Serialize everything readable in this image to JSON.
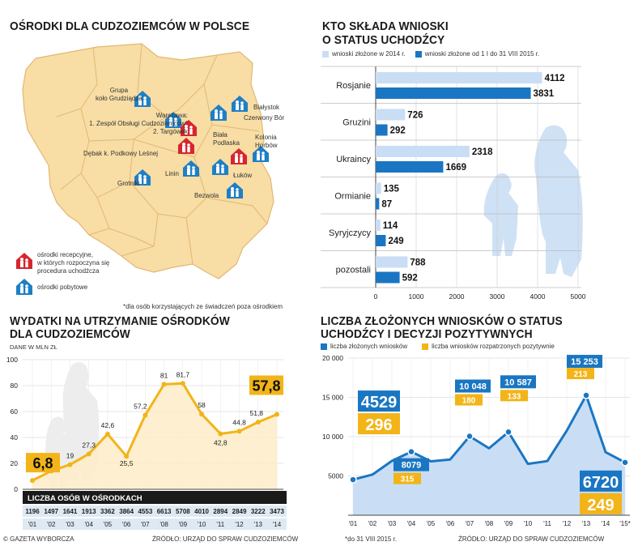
{
  "map": {
    "title": "OŚRODKI DLA CUDZOZIEMCÓW W POLSCE",
    "labels": {
      "grupa": "Grupa\nkoło Grudziądza",
      "warszawa": "Warszawa:\n1. Zespół Obsługi Cudzoziemców*\n2. Targówek",
      "debak": "Dębak k. Podkowy Leśnej",
      "bialystok": "Białystok",
      "czerwony": "Czerwony Bór",
      "biala": "Biała\nPodlaska",
      "kolonia": "Kolonia\nHorbów",
      "linin": "Linin",
      "lukow": "Łuków",
      "grotniki": "Grotniki",
      "bezwola": "Bezwola"
    },
    "legend_reception": "ośrodki recepcyjne,\nw których rozpoczyna się\nprocedura uchodźcza",
    "legend_stay": "ośrodki pobytowe",
    "footnote": "*dla osób korzystających ze świadczeń poza ośrodkiem",
    "colors": {
      "land": "#f8dda5",
      "border": "#e2b872",
      "reception": "#d7262e",
      "stay": "#1f7fc4"
    }
  },
  "applicants": {
    "title_line1": "KTO SKŁADA WNIOSKI",
    "title_line2": "O STATUS UCHODŹCY",
    "legend": [
      "wnioski złożone w 2014 r.",
      "wnioski złożone od 1 I do 31 VIII 2015 r."
    ]
  },
  "expenses": {
    "title_line1": "WYDATKI NA UTRZYMANIE OŚRODKÓW",
    "title_line2": "DLA CUDZOZIEMCÓW",
    "unit": "DANE W MLN ZŁ",
    "band_title": "LICZBA OSÓB W OŚRODKACH",
    "people": [
      "1196",
      "1497",
      "1641",
      "1913",
      "3362",
      "3864",
      "4553",
      "6613",
      "5708",
      "4010",
      "2894",
      "2849",
      "3222",
      "3473"
    ]
  },
  "decisions": {
    "title_line1": "LICZBA ZŁOŻONYCH WNIOSKÓW O STATUS",
    "title_line2": "UCHODŹCY I DECYZJI POZYTYWNYCH",
    "legend": [
      "liczba złożonych wniosków",
      "liczba wniosków rozpatrzonych pozytywnie"
    ],
    "footnote": "*do 31 VIII 2015 r."
  },
  "footer": {
    "credit": "© GAZETA WYBORCZA",
    "source_left": "ŹRÓDŁO: URZĄD DO SPRAW CUDZOZIEMCÓW",
    "source_right": "ŹRÓDŁO: URZĄD DO SPRAW CUDZOZIEMCÓW"
  },
  "chart_data": [
    {
      "type": "bar",
      "orientation": "horizontal",
      "title": "KTO SKŁADA WNIOSKI O STATUS UCHODŹCY",
      "categories": [
        "Rosjanie",
        "Gruzini",
        "Ukraincy",
        "Ormianie",
        "Syryjczycy",
        "pozostali"
      ],
      "series": [
        {
          "name": "wnioski złożone w 2014 r.",
          "values": [
            4112,
            726,
            2318,
            135,
            114,
            788
          ],
          "color": "#c9def5"
        },
        {
          "name": "wnioski złożone od 1 I do 31 VIII 2015 r.",
          "values": [
            3831,
            292,
            1669,
            87,
            249,
            592
          ],
          "color": "#1a76c2"
        }
      ],
      "xlim": [
        0,
        5000
      ],
      "xticks": [
        0,
        1000,
        2000,
        3000,
        4000,
        5000
      ]
    },
    {
      "type": "line",
      "title": "WYDATKI NA UTRZYMANIE OŚRODKÓW DLA CUDZOZIEMCÓW",
      "ylabel": "DANE W MLN ZŁ",
      "categories": [
        "'01",
        "'02",
        "'03",
        "'04",
        "'05",
        "'06",
        "'07",
        "'08",
        "'09",
        "'10",
        "'11",
        "'12",
        "'13",
        "'14"
      ],
      "series": [
        {
          "values": [
            6.8,
            14.1,
            19,
            27.3,
            42.6,
            25.5,
            57.2,
            81,
            81.7,
            58,
            42.8,
            44.8,
            51.8,
            57.8
          ],
          "color": "#f2b418"
        }
      ],
      "value_labels": [
        "6,8",
        "14,1",
        "19",
        "27,3",
        "42,6",
        "25,5",
        "57,2",
        "81",
        "81,7",
        "58",
        "42,8",
        "44,8",
        "51,8",
        "57,8"
      ],
      "ylim": [
        0,
        100
      ],
      "yticks": [
        0,
        20,
        40,
        60,
        80,
        100
      ],
      "grid": true
    },
    {
      "type": "area",
      "title": "LICZBA ZŁOŻONYCH WNIOSKÓW O STATUS UCHODŹCY I DECYZJI POZYTYWNYCH",
      "categories": [
        "'01",
        "'02",
        "'03",
        "'04",
        "'05",
        "'06",
        "'07",
        "'08",
        "'09",
        "'10",
        "'11",
        "'12",
        "'13",
        "'14",
        "'15*"
      ],
      "series": [
        {
          "name": "liczba złożonych wniosków",
          "values": [
            4529,
            5170,
            6909,
            8079,
            6860,
            7093,
            10048,
            8517,
            10587,
            6534,
            6887,
            10753,
            15253,
            8020,
            6720
          ],
          "color": "#1a76c2"
        }
      ],
      "annotations": [
        {
          "category": "'01",
          "submitted": "4529",
          "positive": "296"
        },
        {
          "category": "'04",
          "submitted": "8079",
          "positive": "315"
        },
        {
          "category": "'07",
          "submitted": "10 048",
          "positive": "180"
        },
        {
          "category": "'09",
          "submitted": "10 587",
          "positive": "133"
        },
        {
          "category": "'13",
          "submitted": "15 253",
          "positive": "213"
        },
        {
          "category": "'15*",
          "submitted": "6720",
          "positive": "249"
        }
      ],
      "ylim": [
        0,
        20000
      ],
      "yticks": [
        5000,
        10000,
        15000,
        20000
      ],
      "ytick_labels": [
        "5000",
        "10 000",
        "15 000",
        "20 000"
      ],
      "grid": true
    }
  ]
}
